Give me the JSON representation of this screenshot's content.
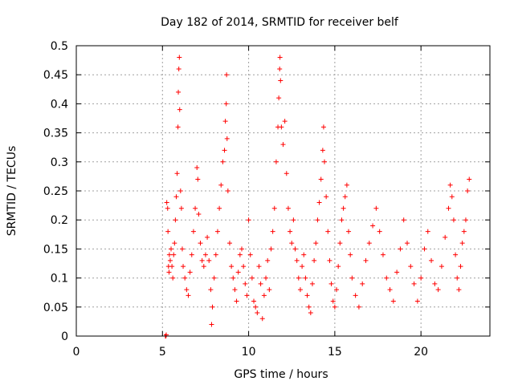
{
  "chart_data": {
    "type": "scatter",
    "title": "Day 182 of 2014, SRMTID for receiver belf",
    "xlabel": "GPS time / hours",
    "ylabel": "SRMTID / TECUs",
    "xlim": [
      0,
      24
    ],
    "ylim": [
      0,
      0.5
    ],
    "xticks": [
      0,
      5,
      10,
      15,
      20
    ],
    "yticks": [
      0,
      0.05,
      0.1,
      0.15,
      0.2,
      0.25,
      0.3,
      0.35,
      0.4,
      0.45,
      0.5
    ],
    "grid": true,
    "marker": "+",
    "colors": {
      "points": "#ff0000",
      "grid": "#a0a0a0",
      "axis": "#000000"
    },
    "series": [
      {
        "name": "SRMTID",
        "points": [
          [
            5.17,
            0.0
          ],
          [
            5.2,
            0.0
          ],
          [
            5.22,
            0.002
          ],
          [
            5.25,
            0.23
          ],
          [
            5.3,
            0.22
          ],
          [
            5.32,
            0.18
          ],
          [
            5.35,
            0.12
          ],
          [
            5.38,
            0.11
          ],
          [
            5.4,
            0.14
          ],
          [
            5.45,
            0.13
          ],
          [
            5.5,
            0.15
          ],
          [
            5.55,
            0.12
          ],
          [
            5.6,
            0.1
          ],
          [
            5.65,
            0.14
          ],
          [
            5.7,
            0.16
          ],
          [
            5.75,
            0.2
          ],
          [
            5.8,
            0.24
          ],
          [
            5.85,
            0.28
          ],
          [
            5.9,
            0.36
          ],
          [
            5.92,
            0.42
          ],
          [
            5.95,
            0.46
          ],
          [
            5.98,
            0.48
          ],
          [
            6.0,
            0.39
          ],
          [
            6.05,
            0.25
          ],
          [
            6.1,
            0.22
          ],
          [
            6.15,
            0.15
          ],
          [
            6.2,
            0.12
          ],
          [
            6.3,
            0.1
          ],
          [
            6.4,
            0.08
          ],
          [
            6.5,
            0.07
          ],
          [
            6.6,
            0.11
          ],
          [
            6.7,
            0.14
          ],
          [
            6.8,
            0.18
          ],
          [
            6.9,
            0.22
          ],
          [
            7.0,
            0.29
          ],
          [
            7.05,
            0.27
          ],
          [
            7.1,
            0.21
          ],
          [
            7.2,
            0.16
          ],
          [
            7.3,
            0.13
          ],
          [
            7.4,
            0.12
          ],
          [
            7.5,
            0.14
          ],
          [
            7.6,
            0.17
          ],
          [
            7.7,
            0.13
          ],
          [
            7.8,
            0.08
          ],
          [
            7.85,
            0.02
          ],
          [
            7.9,
            0.05
          ],
          [
            8.0,
            0.1
          ],
          [
            8.1,
            0.14
          ],
          [
            8.2,
            0.18
          ],
          [
            8.3,
            0.22
          ],
          [
            8.4,
            0.26
          ],
          [
            8.5,
            0.3
          ],
          [
            8.6,
            0.32
          ],
          [
            8.65,
            0.37
          ],
          [
            8.7,
            0.4
          ],
          [
            8.72,
            0.45
          ],
          [
            8.75,
            0.34
          ],
          [
            8.8,
            0.25
          ],
          [
            8.9,
            0.16
          ],
          [
            9.0,
            0.12
          ],
          [
            9.1,
            0.1
          ],
          [
            9.2,
            0.08
          ],
          [
            9.3,
            0.06
          ],
          [
            9.4,
            0.11
          ],
          [
            9.5,
            0.14
          ],
          [
            9.6,
            0.15
          ],
          [
            9.7,
            0.12
          ],
          [
            9.8,
            0.09
          ],
          [
            9.9,
            0.07
          ],
          [
            10.0,
            0.2
          ],
          [
            10.1,
            0.14
          ],
          [
            10.2,
            0.1
          ],
          [
            10.3,
            0.06
          ],
          [
            10.4,
            0.05
          ],
          [
            10.5,
            0.04
          ],
          [
            10.6,
            0.12
          ],
          [
            10.7,
            0.09
          ],
          [
            10.8,
            0.03
          ],
          [
            10.9,
            0.07
          ],
          [
            11.0,
            0.1
          ],
          [
            11.1,
            0.13
          ],
          [
            11.2,
            0.08
          ],
          [
            11.3,
            0.15
          ],
          [
            11.4,
            0.18
          ],
          [
            11.5,
            0.22
          ],
          [
            11.6,
            0.3
          ],
          [
            11.7,
            0.36
          ],
          [
            11.75,
            0.41
          ],
          [
            11.8,
            0.46
          ],
          [
            11.82,
            0.48
          ],
          [
            11.85,
            0.44
          ],
          [
            11.9,
            0.36
          ],
          [
            12.0,
            0.33
          ],
          [
            12.1,
            0.37
          ],
          [
            12.2,
            0.28
          ],
          [
            12.3,
            0.22
          ],
          [
            12.4,
            0.18
          ],
          [
            12.5,
            0.16
          ],
          [
            12.6,
            0.2
          ],
          [
            12.7,
            0.15
          ],
          [
            12.8,
            0.13
          ],
          [
            12.9,
            0.1
          ],
          [
            13.0,
            0.08
          ],
          [
            13.1,
            0.12
          ],
          [
            13.2,
            0.14
          ],
          [
            13.3,
            0.1
          ],
          [
            13.4,
            0.07
          ],
          [
            13.5,
            0.05
          ],
          [
            13.6,
            0.04
          ],
          [
            13.7,
            0.09
          ],
          [
            13.8,
            0.13
          ],
          [
            13.9,
            0.16
          ],
          [
            14.0,
            0.2
          ],
          [
            14.1,
            0.23
          ],
          [
            14.2,
            0.27
          ],
          [
            14.3,
            0.32
          ],
          [
            14.35,
            0.36
          ],
          [
            14.4,
            0.3
          ],
          [
            14.5,
            0.24
          ],
          [
            14.6,
            0.18
          ],
          [
            14.7,
            0.13
          ],
          [
            14.8,
            0.09
          ],
          [
            14.9,
            0.06
          ],
          [
            15.0,
            0.05
          ],
          [
            15.1,
            0.08
          ],
          [
            15.2,
            0.12
          ],
          [
            15.3,
            0.16
          ],
          [
            15.4,
            0.2
          ],
          [
            15.5,
            0.22
          ],
          [
            15.6,
            0.24
          ],
          [
            15.7,
            0.26
          ],
          [
            15.8,
            0.18
          ],
          [
            15.9,
            0.14
          ],
          [
            16.0,
            0.1
          ],
          [
            16.2,
            0.07
          ],
          [
            16.4,
            0.05
          ],
          [
            16.6,
            0.09
          ],
          [
            16.8,
            0.13
          ],
          [
            17.0,
            0.16
          ],
          [
            17.2,
            0.19
          ],
          [
            17.4,
            0.22
          ],
          [
            17.6,
            0.18
          ],
          [
            17.8,
            0.14
          ],
          [
            18.0,
            0.1
          ],
          [
            18.2,
            0.08
          ],
          [
            18.4,
            0.06
          ],
          [
            18.6,
            0.11
          ],
          [
            18.8,
            0.15
          ],
          [
            19.0,
            0.2
          ],
          [
            19.2,
            0.16
          ],
          [
            19.4,
            0.12
          ],
          [
            19.6,
            0.09
          ],
          [
            19.8,
            0.06
          ],
          [
            20.0,
            0.1
          ],
          [
            20.2,
            0.15
          ],
          [
            20.4,
            0.18
          ],
          [
            20.6,
            0.13
          ],
          [
            20.8,
            0.09
          ],
          [
            21.0,
            0.08
          ],
          [
            21.2,
            0.12
          ],
          [
            21.4,
            0.17
          ],
          [
            21.6,
            0.22
          ],
          [
            21.7,
            0.26
          ],
          [
            21.8,
            0.24
          ],
          [
            21.9,
            0.2
          ],
          [
            22.0,
            0.14
          ],
          [
            22.1,
            0.1
          ],
          [
            22.2,
            0.08
          ],
          [
            22.3,
            0.12
          ],
          [
            22.4,
            0.16
          ],
          [
            22.5,
            0.18
          ],
          [
            22.6,
            0.2
          ],
          [
            22.7,
            0.25
          ],
          [
            22.8,
            0.27
          ]
        ]
      }
    ]
  }
}
